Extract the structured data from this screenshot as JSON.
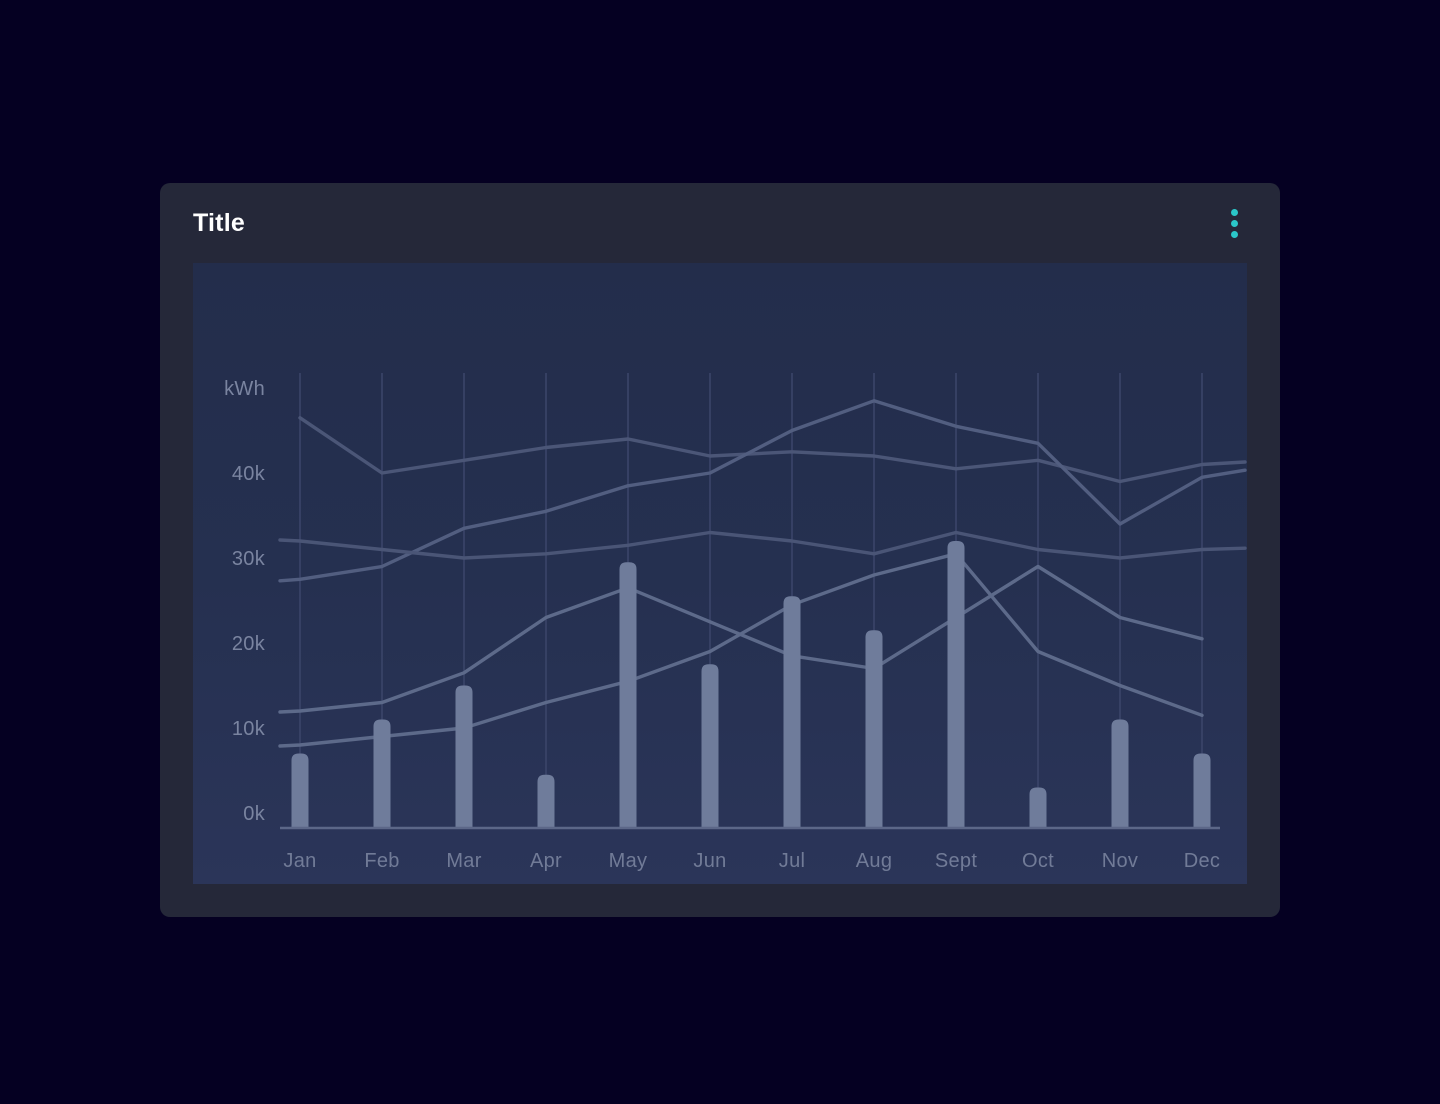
{
  "card": {
    "title": "Title",
    "accent_color": "#2bc7c9",
    "menu_icon": "kebab-vertical-icon"
  },
  "chart_data": {
    "type": "combo",
    "title": "Title",
    "y_unit": "kWh",
    "value_scale": "thousands of kWh",
    "categories": [
      "Jan",
      "Feb",
      "Mar",
      "Apr",
      "May",
      "Jun",
      "Jul",
      "Aug",
      "Sept",
      "Oct",
      "Nov",
      "Dec"
    ],
    "y_ticks": [
      {
        "value": 0,
        "label": "0k"
      },
      {
        "value": 10,
        "label": "10k"
      },
      {
        "value": 20,
        "label": "20k"
      },
      {
        "value": 30,
        "label": "30k"
      },
      {
        "value": 40,
        "label": "40k"
      }
    ],
    "ylim": [
      0,
      50
    ],
    "grid": {
      "vertical": true,
      "horizontal": false
    },
    "legend": "none",
    "bar_series": {
      "name": "monthly-total-bars",
      "color": "#6f7c9b",
      "values": [
        7,
        11,
        15,
        4.5,
        29.5,
        17.5,
        25.5,
        21.5,
        32,
        3,
        11,
        7
      ]
    },
    "line_series": [
      {
        "name": "series-1",
        "color": "#4b5677",
        "extend_left": false,
        "extend_right": true,
        "values": [
          46.5,
          40,
          41.5,
          43,
          44,
          42,
          42.5,
          42,
          40.5,
          41.5,
          39,
          41
        ]
      },
      {
        "name": "series-2",
        "color": "#525e80",
        "extend_left": true,
        "extend_right": true,
        "values": [
          27.5,
          29,
          33.5,
          35.5,
          38.5,
          40,
          45,
          48.5,
          45.5,
          43.5,
          34,
          39.5
        ]
      },
      {
        "name": "series-3",
        "color": "#4a5576",
        "extend_left": true,
        "extend_right": true,
        "values": [
          32,
          31,
          30,
          30.5,
          31.5,
          33,
          32,
          30.5,
          33,
          31,
          30,
          31
        ]
      },
      {
        "name": "series-4",
        "color": "#5d6a8a",
        "extend_left": true,
        "extend_right": false,
        "values": [
          12,
          13,
          16.5,
          23,
          26.5,
          22.5,
          18.5,
          17,
          23,
          29,
          23,
          20.5
        ]
      },
      {
        "name": "series-5",
        "color": "#5d6a8a",
        "extend_left": true,
        "extend_right": false,
        "values": [
          8,
          9,
          10,
          13,
          15.5,
          19,
          24.5,
          28,
          30.5,
          19,
          15,
          11.5
        ]
      }
    ]
  }
}
